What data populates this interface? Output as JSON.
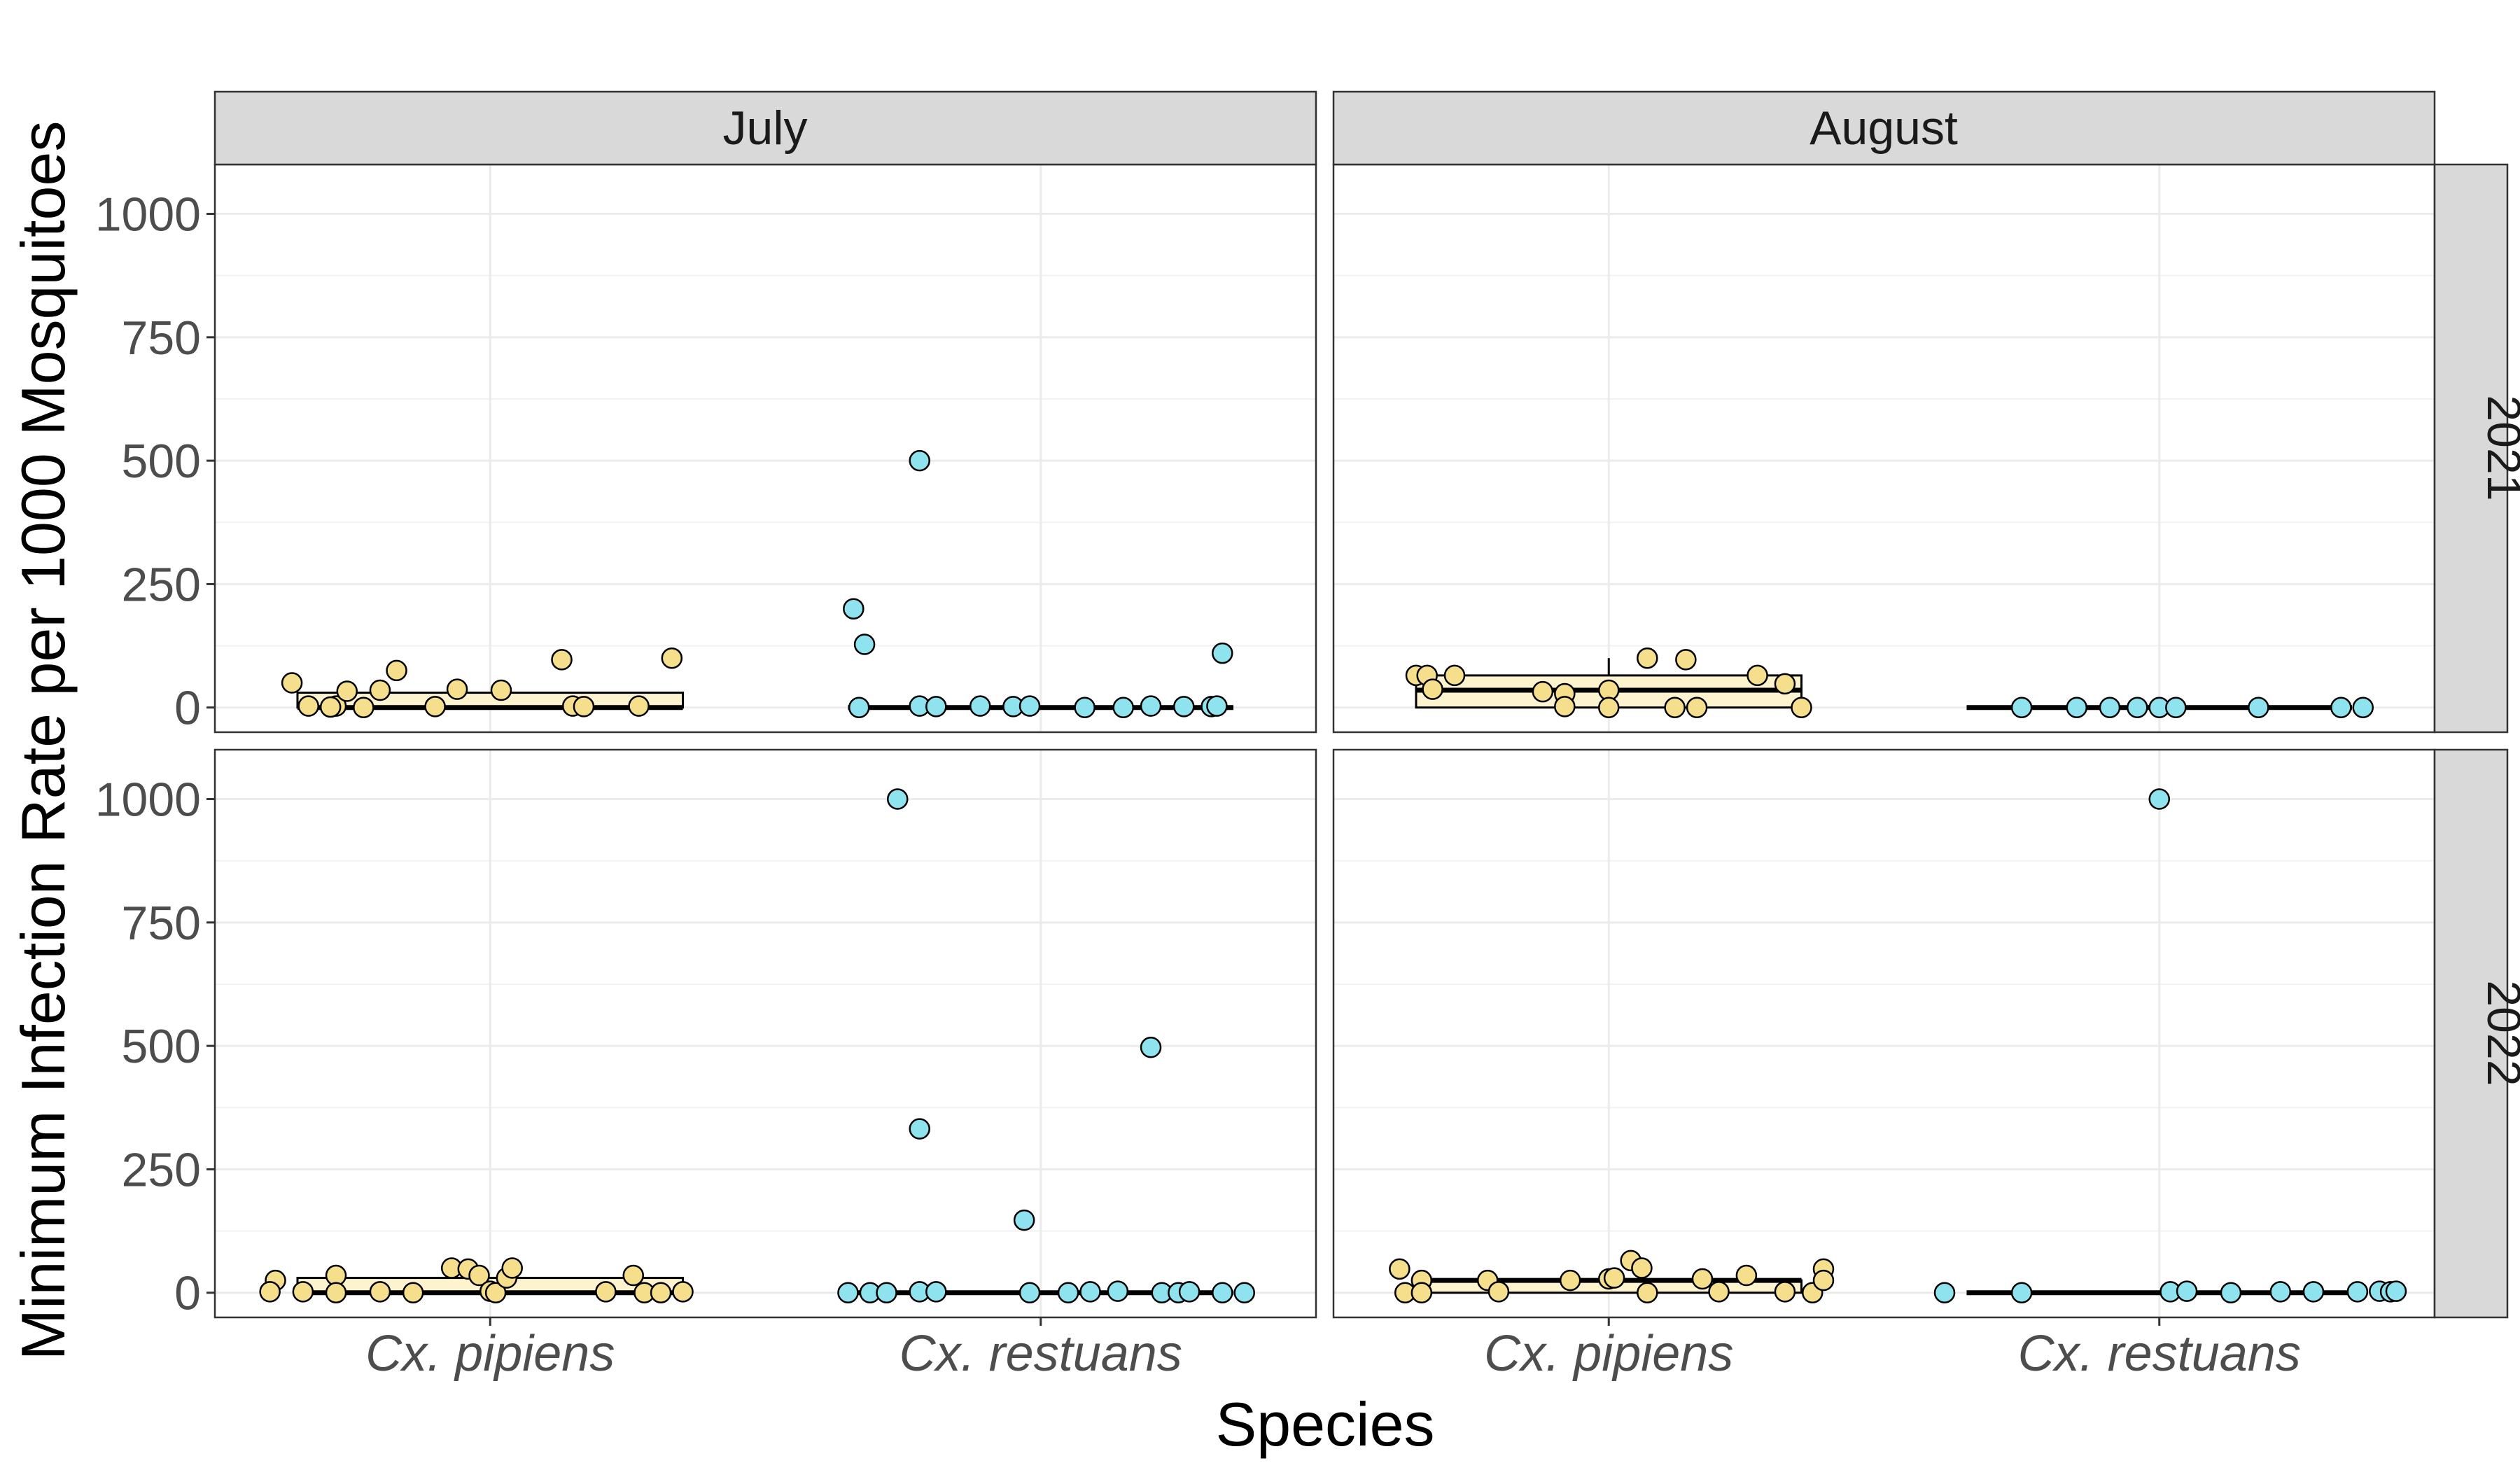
{
  "chart_data": {
    "type": "box-jitter",
    "xlabel": "Species",
    "ylabel": "Minimum Infection Rate per 1000 Mosquitoes",
    "categories": [
      "Cx. pipiens",
      "Cx. restuans"
    ],
    "columns": [
      "July",
      "August"
    ],
    "rows": [
      "2021",
      "2022"
    ],
    "yticks": [
      0,
      250,
      500,
      750,
      1000
    ],
    "ylim": [
      -50,
      1100
    ],
    "grid": true,
    "colors": {
      "Cx. pipiens": "#f5de8c",
      "Cx. restuans": "#8fe3ee",
      "box_fill": "#fdf3cf",
      "strip": "#d9d9d9"
    },
    "panels": [
      {
        "column": "July",
        "row": "2021",
        "groups": [
          {
            "species": "Cx. pipiens",
            "box": {
              "q1": 0,
              "median": 0,
              "q3": 30
            },
            "points": [
              [
                -0.36,
                50
              ],
              [
                -0.33,
                3
              ],
              [
                -0.28,
                3
              ],
              [
                -0.26,
                33
              ],
              [
                -0.2,
                35
              ],
              [
                -0.17,
                75
              ],
              [
                -0.1,
                2
              ],
              [
                -0.06,
                37
              ],
              [
                0.02,
                35
              ],
              [
                0.13,
                97
              ],
              [
                0.15,
                3
              ],
              [
                0.17,
                2
              ],
              [
                0.27,
                3
              ],
              [
                0.33,
                100
              ],
              [
                -0.29,
                1
              ],
              [
                -0.23,
                0
              ]
            ]
          },
          {
            "species": "Cx. restuans",
            "box": {
              "q1": 0,
              "median": 0,
              "q3": 0
            },
            "points": [
              [
                -0.34,
                200
              ],
              [
                -0.32,
                128
              ],
              [
                -0.33,
                0
              ],
              [
                -0.22,
                500
              ],
              [
                -0.22,
                3
              ],
              [
                -0.19,
                2
              ],
              [
                -0.11,
                3
              ],
              [
                -0.05,
                2
              ],
              [
                -0.02,
                3
              ],
              [
                0.08,
                0
              ],
              [
                0.15,
                0
              ],
              [
                0.2,
                3
              ],
              [
                0.26,
                2
              ],
              [
                0.31,
                2
              ],
              [
                0.32,
                3
              ],
              [
                0.33,
                110
              ]
            ]
          }
        ]
      },
      {
        "column": "August",
        "row": "2021",
        "groups": [
          {
            "species": "Cx. pipiens",
            "box": {
              "q1": 0,
              "median": 35,
              "q3": 65,
              "whisker_high": 100
            },
            "points": [
              [
                -0.35,
                65
              ],
              [
                -0.33,
                65
              ],
              [
                -0.32,
                37
              ],
              [
                -0.28,
                65
              ],
              [
                -0.12,
                32
              ],
              [
                -0.08,
                28
              ],
              [
                -0.08,
                2
              ],
              [
                0.0,
                35
              ],
              [
                0.0,
                0
              ],
              [
                0.07,
                100
              ],
              [
                0.12,
                0
              ],
              [
                0.14,
                97
              ],
              [
                0.16,
                0
              ],
              [
                0.27,
                65
              ],
              [
                0.32,
                48
              ],
              [
                0.35,
                0
              ]
            ]
          },
          {
            "species": "Cx. restuans",
            "box": {
              "q1": 0,
              "median": 0,
              "q3": 0
            },
            "points": [
              [
                -0.25,
                0
              ],
              [
                -0.15,
                0
              ],
              [
                -0.09,
                0
              ],
              [
                -0.04,
                0
              ],
              [
                0.0,
                0
              ],
              [
                0.03,
                0
              ],
              [
                0.18,
                0
              ],
              [
                0.33,
                0
              ],
              [
                0.37,
                0
              ]
            ]
          }
        ]
      },
      {
        "column": "July",
        "row": "2022",
        "groups": [
          {
            "species": "Cx. pipiens",
            "box": {
              "q1": 0,
              "median": 0,
              "q3": 30
            },
            "points": [
              [
                -0.39,
                25
              ],
              [
                -0.4,
                2
              ],
              [
                -0.34,
                2
              ],
              [
                -0.28,
                35
              ],
              [
                -0.28,
                0
              ],
              [
                -0.2,
                2
              ],
              [
                -0.14,
                0
              ],
              [
                -0.07,
                50
              ],
              [
                -0.04,
                48
              ],
              [
                -0.02,
                35
              ],
              [
                0.0,
                3
              ],
              [
                0.01,
                0
              ],
              [
                0.03,
                30
              ],
              [
                0.04,
                50
              ],
              [
                0.21,
                2
              ],
              [
                0.26,
                35
              ],
              [
                0.28,
                0
              ],
              [
                0.31,
                0
              ],
              [
                0.35,
                2
              ]
            ]
          },
          {
            "species": "Cx. restuans",
            "box": {
              "q1": 0,
              "median": 0,
              "q3": 0
            },
            "points": [
              [
                -0.35,
                0
              ],
              [
                -0.31,
                0
              ],
              [
                -0.28,
                0
              ],
              [
                -0.26,
                1000
              ],
              [
                -0.22,
                332
              ],
              [
                -0.22,
                2
              ],
              [
                -0.19,
                2
              ],
              [
                -0.03,
                147
              ],
              [
                -0.02,
                0
              ],
              [
                0.05,
                0
              ],
              [
                0.09,
                2
              ],
              [
                0.14,
                3
              ],
              [
                0.2,
                497
              ],
              [
                0.22,
                0
              ],
              [
                0.25,
                0
              ],
              [
                0.27,
                2
              ],
              [
                0.33,
                0
              ],
              [
                0.37,
                0
              ]
            ]
          }
        ]
      },
      {
        "column": "August",
        "row": "2022",
        "groups": [
          {
            "species": "Cx. pipiens",
            "box": {
              "q1": 0,
              "median": 25,
              "q3": 25
            },
            "points": [
              [
                -0.38,
                48
              ],
              [
                -0.37,
                0
              ],
              [
                -0.34,
                25
              ],
              [
                -0.34,
                0
              ],
              [
                -0.22,
                25
              ],
              [
                -0.2,
                2
              ],
              [
                -0.07,
                25
              ],
              [
                0.0,
                28
              ],
              [
                0.01,
                30
              ],
              [
                0.04,
                65
              ],
              [
                0.06,
                50
              ],
              [
                0.07,
                0
              ],
              [
                0.17,
                28
              ],
              [
                0.2,
                2
              ],
              [
                0.25,
                35
              ],
              [
                0.32,
                2
              ],
              [
                0.37,
                0
              ],
              [
                0.39,
                48
              ],
              [
                0.39,
                25
              ]
            ]
          },
          {
            "species": "Cx. restuans",
            "box": {
              "q1": 0,
              "median": 0,
              "q3": 0
            },
            "points": [
              [
                -0.39,
                0
              ],
              [
                -0.25,
                0
              ],
              [
                0.0,
                1000
              ],
              [
                0.02,
                2
              ],
              [
                0.05,
                3
              ],
              [
                0.13,
                0
              ],
              [
                0.22,
                2
              ],
              [
                0.28,
                2
              ],
              [
                0.36,
                2
              ],
              [
                0.4,
                3
              ],
              [
                0.42,
                2
              ],
              [
                0.43,
                3
              ]
            ]
          }
        ]
      }
    ]
  }
}
